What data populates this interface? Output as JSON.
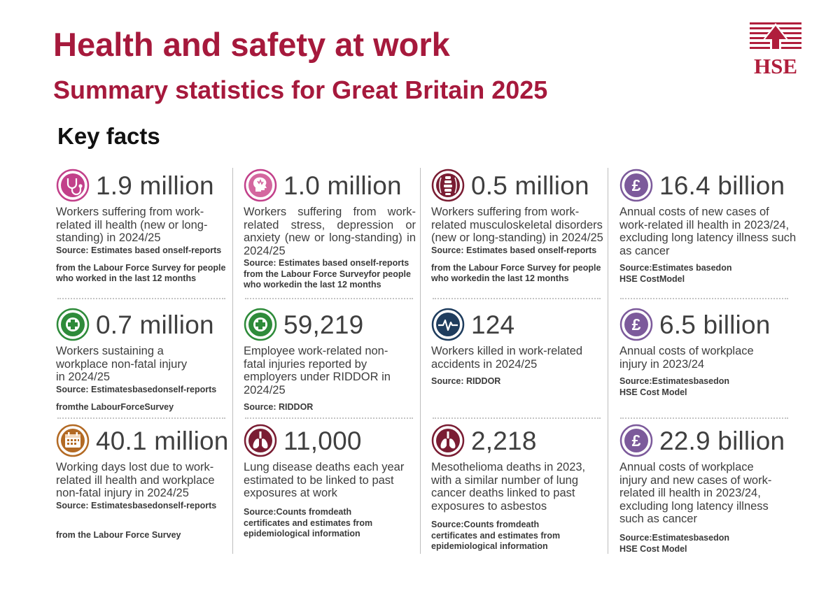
{
  "header": {
    "title": "Health and safety at work",
    "subtitle": "Summary statistics for Great Britain 2025",
    "section": "Key facts",
    "logo_text": "HSE"
  },
  "colors": {
    "brand": "#a6193c",
    "pink": "#c2408a",
    "green": "#2e8b3a",
    "purple": "#7c5a9b",
    "navy": "#1f3d5e",
    "orange": "#b36a24",
    "maroon": "#7a1d33"
  },
  "facts": [
    {
      "icon": "stethoscope-icon",
      "value": "1.9 million",
      "desc": "Workers suffering from work-related ill health (new or long-standing) in 2024/25",
      "source_1": "Source: Estimates based onself-reports",
      "source_2": "from the Labour Force Survey for people who worked in the last 12 months"
    },
    {
      "icon": "head-stress-icon",
      "value": "1.0 million",
      "desc": "Workers suffering from work-related stress, depression or anxiety (new or long-standing) in 2024/25",
      "source_1": "Source: Estimates based onself-reports",
      "source_2": "from the Labour Force Surveyfor people who workedin the last 12 months"
    },
    {
      "icon": "spine-icon",
      "value": "0.5 million",
      "desc": "Workers suffering from work-related musculoskeletal disorders (new or long-standing) in 2024/25",
      "source_1": "Source: Estimates based onself-reports",
      "source_2": "from the Labour Force Survey for people who workedin the last 12 months"
    },
    {
      "icon": "pound-icon",
      "value": "16.4 billion",
      "desc": "Annual costs of new cases of work-related ill health in 2023/24, excluding long latency illness such as cancer",
      "source_1": "Source:Estimates basedon",
      "source_2": "HSE CostModel"
    },
    {
      "icon": "medical-cross-icon",
      "value": "0.7 million",
      "desc": "Workers sustaining a workplace non-fatal injury in 2024/25",
      "source_1": "Source: Estimatesbasedonself-reports",
      "source_2": "fromthe LabourForceSurvey"
    },
    {
      "icon": "medical-cross-icon",
      "value": "59,219",
      "desc": "Employee work-related non-fatal injuries reported by employers under RIDDOR in 2024/25",
      "source_1": "Source: RIDDOR",
      "source_2": ""
    },
    {
      "icon": "heartbeat-icon",
      "value": "124",
      "desc": "Workers killed in work-related accidents in 2024/25",
      "source_1": "Source: RIDDOR",
      "source_2": ""
    },
    {
      "icon": "pound-icon",
      "value": "6.5 billion",
      "desc": "Annual costs of workplace injury in 2023/24",
      "source_1": "Source:Estimatesbasedon",
      "source_2": "HSE Cost Model"
    },
    {
      "icon": "calendar-icon",
      "value": "40.1 million",
      "desc": "Working days lost due to work-related ill health and workplace non-fatal injury in 2024/25",
      "source_1": "Source: Estimatesbasedonself-reports",
      "source_2": "from the Labour Force Survey"
    },
    {
      "icon": "lungs-icon",
      "value": "11,000",
      "desc": "Lung disease deaths each year estimated to be linked to past exposures at work",
      "source_1": "Source:Counts fromdeath",
      "source_2": "certificates and estimates from epidemiological information"
    },
    {
      "icon": "lungs-icon",
      "value": "2,218",
      "desc": "Mesothelioma deaths in 2023, with a similar number of lung cancer deaths linked to past exposures to asbestos",
      "source_1": "Source:Counts fromdeath",
      "source_2": "certificates and estimates from epidemiological information"
    },
    {
      "icon": "pound-icon",
      "value": "22.9 billion",
      "desc": "Annual costs of workplace injury and new cases of work-related ill health in 2023/24, excluding long latency illness such as cancer",
      "source_1": "Source:Estimatesbasedon",
      "source_2": "HSE Cost Model"
    }
  ]
}
